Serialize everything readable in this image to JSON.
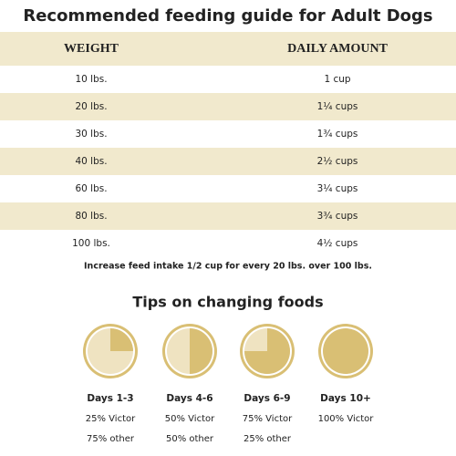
{
  "header": {
    "title": "Recommended feeding guide for Adult Dogs"
  },
  "table": {
    "columns": [
      "WEIGHT",
      "DAILY AMOUNT"
    ],
    "rows": [
      [
        "10 lbs.",
        "1 cup"
      ],
      [
        "20 lbs.",
        "1¼ cups"
      ],
      [
        "30 lbs.",
        "1¾ cups"
      ],
      [
        "40 lbs.",
        "2½ cups"
      ],
      [
        "60 lbs.",
        "3¼ cups"
      ],
      [
        "80 lbs.",
        "3¾ cups"
      ],
      [
        "100 lbs.",
        "4½ cups"
      ]
    ]
  },
  "note": "Increase feed intake 1/2 cup for every 20 lbs. over 100 lbs.",
  "tips": {
    "title": "Tips on changing foods",
    "items": [
      {
        "label": "Days 1-3",
        "line1": "25% Victor",
        "line2": "75% other"
      },
      {
        "label": "Days 4-6",
        "line1": "50% Victor",
        "line2": "50% other"
      },
      {
        "label": "Days 6-9",
        "line1": "75% Victor",
        "line2": "25% other"
      },
      {
        "label": "Days 10+",
        "line1": "100% Victor"
      }
    ]
  }
}
